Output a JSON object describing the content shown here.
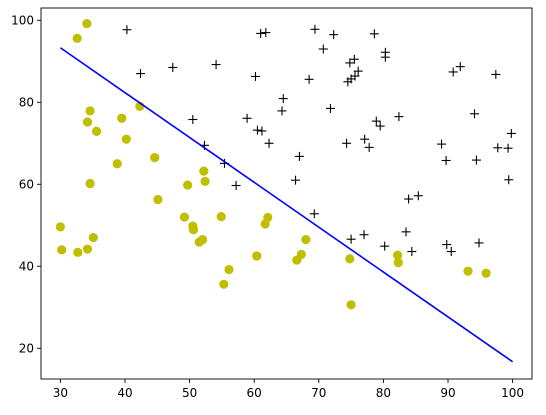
{
  "chart_data": {
    "type": "scatter",
    "title": "",
    "xlabel": "",
    "ylabel": "",
    "xlim": [
      27,
      103
    ],
    "ylim": [
      12.5,
      103
    ],
    "xticks": [
      30,
      40,
      50,
      60,
      70,
      80,
      90,
      100
    ],
    "yticks": [
      20,
      40,
      60,
      80,
      100
    ],
    "grid": false,
    "legend": "none",
    "series": [
      {
        "marker": "circle",
        "color": "#bfbf00",
        "points": [
          [
            34.1,
            99.2
          ],
          [
            32.6,
            95.6
          ],
          [
            42.3,
            79.0
          ],
          [
            34.6,
            77.9
          ],
          [
            34.2,
            75.2
          ],
          [
            39.5,
            76.1
          ],
          [
            35.6,
            72.9
          ],
          [
            40.2,
            71.0
          ],
          [
            44.6,
            66.5
          ],
          [
            38.8,
            65.0
          ],
          [
            34.6,
            60.2
          ],
          [
            52.2,
            63.2
          ],
          [
            52.4,
            60.7
          ],
          [
            49.7,
            59.8
          ],
          [
            45.1,
            56.3
          ],
          [
            30.0,
            49.6
          ],
          [
            49.2,
            52.0
          ],
          [
            54.9,
            52.1
          ],
          [
            62.1,
            51.9
          ],
          [
            61.7,
            50.3
          ],
          [
            50.5,
            49.8
          ],
          [
            50.6,
            48.9
          ],
          [
            52.0,
            46.5
          ],
          [
            51.5,
            45.9
          ],
          [
            35.1,
            47.0
          ],
          [
            30.2,
            44.0
          ],
          [
            32.7,
            43.4
          ],
          [
            34.2,
            44.2
          ],
          [
            60.4,
            42.5
          ],
          [
            68.0,
            46.5
          ],
          [
            67.3,
            42.9
          ],
          [
            66.6,
            41.5
          ],
          [
            74.8,
            41.8
          ],
          [
            82.2,
            42.7
          ],
          [
            82.3,
            40.9
          ],
          [
            56.1,
            39.2
          ],
          [
            55.3,
            35.6
          ],
          [
            75.0,
            30.6
          ],
          [
            93.1,
            38.8
          ],
          [
            95.9,
            38.3
          ]
        ]
      },
      {
        "marker": "plus",
        "color": "#000000",
        "points": [
          [
            40.3,
            97.7
          ],
          [
            42.4,
            87.0
          ],
          [
            47.4,
            88.5
          ],
          [
            54.1,
            89.2
          ],
          [
            60.2,
            86.3
          ],
          [
            61.0,
            96.8
          ],
          [
            61.8,
            97.0
          ],
          [
            69.4,
            97.8
          ],
          [
            70.7,
            93.0
          ],
          [
            72.3,
            96.5
          ],
          [
            78.6,
            96.7
          ],
          [
            80.3,
            92.2
          ],
          [
            80.3,
            91.0
          ],
          [
            68.5,
            85.6
          ],
          [
            74.5,
            85.0
          ],
          [
            75.0,
            85.7
          ],
          [
            75.6,
            86.4
          ],
          [
            76.1,
            87.6
          ],
          [
            74.8,
            89.6
          ],
          [
            75.5,
            90.5
          ],
          [
            50.5,
            75.8
          ],
          [
            58.9,
            76.1
          ],
          [
            60.5,
            73.2
          ],
          [
            61.2,
            73.0
          ],
          [
            64.3,
            77.9
          ],
          [
            64.5,
            80.9
          ],
          [
            71.8,
            78.5
          ],
          [
            78.9,
            75.4
          ],
          [
            79.5,
            74.2
          ],
          [
            82.4,
            76.5
          ],
          [
            52.3,
            69.5
          ],
          [
            55.4,
            65.1
          ],
          [
            57.2,
            59.7
          ],
          [
            62.3,
            70.0
          ],
          [
            66.4,
            61.0
          ],
          [
            67.0,
            66.8
          ],
          [
            69.3,
            52.8
          ],
          [
            74.3,
            70.0
          ],
          [
            77.1,
            71.0
          ],
          [
            77.8,
            69.0
          ],
          [
            75.0,
            46.6
          ],
          [
            77.0,
            47.7
          ],
          [
            80.2,
            44.9
          ],
          [
            83.5,
            48.4
          ],
          [
            83.9,
            56.4
          ],
          [
            85.4,
            57.2
          ],
          [
            84.4,
            43.6
          ],
          [
            89.0,
            69.8
          ],
          [
            89.7,
            65.8
          ],
          [
            89.8,
            45.3
          ],
          [
            90.5,
            43.6
          ],
          [
            90.8,
            87.4
          ],
          [
            91.9,
            88.7
          ],
          [
            94.1,
            77.2
          ],
          [
            94.4,
            65.9
          ],
          [
            94.8,
            45.7
          ],
          [
            97.4,
            86.8
          ],
          [
            97.7,
            68.9
          ],
          [
            99.3,
            68.8
          ],
          [
            99.4,
            61.1
          ],
          [
            99.8,
            72.4
          ]
        ]
      }
    ],
    "lines": [
      {
        "color": "#0000ff",
        "x": [
          30,
          100
        ],
        "y": [
          93.3,
          16.7
        ]
      }
    ]
  }
}
